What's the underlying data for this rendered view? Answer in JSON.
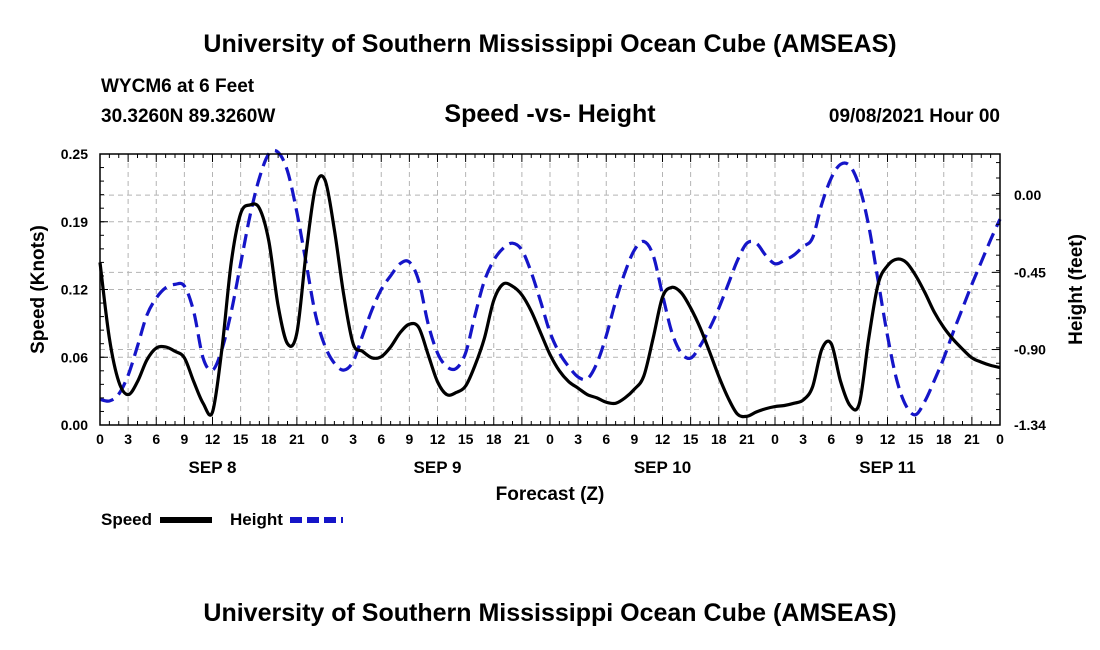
{
  "page": {
    "title_top": "University of Southern Mississippi Ocean Cube (AMSEAS)",
    "title_bottom": "University of Southern Mississippi Ocean Cube (AMSEAS)",
    "station": "WYCM6 at 6 Feet",
    "coords": "30.3260N  89.3260W",
    "subtitle": "Speed -vs- Height",
    "datetime": "09/08/2021 Hour 00"
  },
  "chart_data": {
    "type": "line",
    "title": "Speed -vs- Height",
    "xlabel": "Forecast (Z)",
    "ylabel": "Speed (Knots)",
    "y2label": "Height (feet)",
    "xlim": [
      0,
      96
    ],
    "ylim": [
      0,
      0.25
    ],
    "y2lim": [
      -1.34,
      0.24
    ],
    "y_ticks": [
      "0.00",
      "0.06",
      "0.12",
      "0.19",
      "0.25"
    ],
    "y_tick_values": [
      0,
      0.0625,
      0.125,
      0.1875,
      0.25
    ],
    "y2_ticks": [
      "-1.34",
      "-0.90",
      "-0.45",
      "0.00"
    ],
    "y2_tick_values": [
      -1.34,
      -0.9,
      -0.45,
      0.0
    ],
    "x_tick_labels": [
      "0",
      "3",
      "6",
      "9",
      "12",
      "15",
      "18",
      "21",
      "0",
      "3",
      "6",
      "9",
      "12",
      "15",
      "18",
      "21",
      "0",
      "3",
      "6",
      "9",
      "12",
      "15",
      "18",
      "21",
      "0",
      "3",
      "6",
      "9",
      "12",
      "15",
      "18",
      "21",
      "0"
    ],
    "day_labels": [
      {
        "label": "SEP 8",
        "hour": 12
      },
      {
        "label": "SEP 9",
        "hour": 36
      },
      {
        "label": "SEP 10",
        "hour": 60
      },
      {
        "label": "SEP 11",
        "hour": 84
      }
    ],
    "colors": {
      "speed": "#000000",
      "height": "#1515c8",
      "grid": "#b4b4b4"
    },
    "series": [
      {
        "name": "Speed",
        "axis": "left",
        "style": "solid",
        "points": [
          [
            0,
            0.15
          ],
          [
            1,
            0.08
          ],
          [
            2,
            0.04
          ],
          [
            3,
            0.028
          ],
          [
            4,
            0.04
          ],
          [
            5,
            0.06
          ],
          [
            6,
            0.071
          ],
          [
            7,
            0.072
          ],
          [
            8,
            0.068
          ],
          [
            9,
            0.062
          ],
          [
            10,
            0.04
          ],
          [
            11,
            0.02
          ],
          [
            12,
            0.012
          ],
          [
            13,
            0.07
          ],
          [
            14,
            0.15
          ],
          [
            15,
            0.195
          ],
          [
            16,
            0.203
          ],
          [
            17,
            0.2
          ],
          [
            18,
            0.17
          ],
          [
            19,
            0.11
          ],
          [
            20,
            0.075
          ],
          [
            21,
            0.085
          ],
          [
            22,
            0.16
          ],
          [
            23,
            0.22
          ],
          [
            24,
            0.226
          ],
          [
            25,
            0.18
          ],
          [
            26,
            0.12
          ],
          [
            27,
            0.075
          ],
          [
            28,
            0.068
          ],
          [
            29,
            0.062
          ],
          [
            30,
            0.063
          ],
          [
            31,
            0.072
          ],
          [
            32,
            0.085
          ],
          [
            33,
            0.093
          ],
          [
            34,
            0.09
          ],
          [
            35,
            0.065
          ],
          [
            36,
            0.04
          ],
          [
            37,
            0.028
          ],
          [
            38,
            0.03
          ],
          [
            39,
            0.036
          ],
          [
            40,
            0.055
          ],
          [
            41,
            0.08
          ],
          [
            42,
            0.115
          ],
          [
            43,
            0.13
          ],
          [
            44,
            0.128
          ],
          [
            45,
            0.12
          ],
          [
            46,
            0.105
          ],
          [
            47,
            0.085
          ],
          [
            48,
            0.065
          ],
          [
            49,
            0.05
          ],
          [
            50,
            0.04
          ],
          [
            51,
            0.034
          ],
          [
            52,
            0.028
          ],
          [
            53,
            0.025
          ],
          [
            54,
            0.021
          ],
          [
            55,
            0.02
          ],
          [
            56,
            0.025
          ],
          [
            57,
            0.033
          ],
          [
            58,
            0.045
          ],
          [
            59,
            0.08
          ],
          [
            60,
            0.118
          ],
          [
            61,
            0.127
          ],
          [
            62,
            0.122
          ],
          [
            63,
            0.108
          ],
          [
            64,
            0.09
          ],
          [
            65,
            0.068
          ],
          [
            66,
            0.045
          ],
          [
            67,
            0.025
          ],
          [
            68,
            0.01
          ],
          [
            69,
            0.008
          ],
          [
            70,
            0.012
          ],
          [
            71,
            0.015
          ],
          [
            72,
            0.017
          ],
          [
            73,
            0.018
          ],
          [
            74,
            0.02
          ],
          [
            75,
            0.023
          ],
          [
            76,
            0.035
          ],
          [
            77,
            0.07
          ],
          [
            78,
            0.075
          ],
          [
            79,
            0.04
          ],
          [
            80,
            0.018
          ],
          [
            81,
            0.02
          ],
          [
            82,
            0.08
          ],
          [
            83,
            0.13
          ],
          [
            84,
            0.147
          ],
          [
            85,
            0.153
          ],
          [
            86,
            0.15
          ],
          [
            87,
            0.138
          ],
          [
            88,
            0.122
          ],
          [
            89,
            0.104
          ],
          [
            90,
            0.09
          ],
          [
            91,
            0.079
          ],
          [
            92,
            0.07
          ],
          [
            93,
            0.062
          ],
          [
            94,
            0.058
          ],
          [
            95,
            0.055
          ],
          [
            96,
            0.053
          ]
        ]
      },
      {
        "name": "Height",
        "axis": "right",
        "style": "dashed",
        "points": [
          [
            0,
            -1.19
          ],
          [
            1,
            -1.2
          ],
          [
            2,
            -1.16
          ],
          [
            3,
            -1.05
          ],
          [
            4,
            -0.88
          ],
          [
            5,
            -0.7
          ],
          [
            6,
            -0.6
          ],
          [
            7,
            -0.54
          ],
          [
            8,
            -0.52
          ],
          [
            9,
            -0.53
          ],
          [
            10,
            -0.68
          ],
          [
            11,
            -0.95
          ],
          [
            12,
            -1.02
          ],
          [
            13,
            -0.9
          ],
          [
            14,
            -0.68
          ],
          [
            15,
            -0.4
          ],
          [
            16,
            -0.12
          ],
          [
            17,
            0.1
          ],
          [
            18,
            0.24
          ],
          [
            19,
            0.25
          ],
          [
            20,
            0.14
          ],
          [
            21,
            -0.1
          ],
          [
            22,
            -0.4
          ],
          [
            23,
            -0.7
          ],
          [
            24,
            -0.88
          ],
          [
            25,
            -0.98
          ],
          [
            26,
            -1.02
          ],
          [
            27,
            -0.97
          ],
          [
            28,
            -0.82
          ],
          [
            29,
            -0.67
          ],
          [
            30,
            -0.55
          ],
          [
            31,
            -0.47
          ],
          [
            32,
            -0.4
          ],
          [
            33,
            -0.39
          ],
          [
            34,
            -0.5
          ],
          [
            35,
            -0.75
          ],
          [
            36,
            -0.92
          ],
          [
            37,
            -1.0
          ],
          [
            38,
            -1.01
          ],
          [
            39,
            -0.92
          ],
          [
            40,
            -0.7
          ],
          [
            41,
            -0.5
          ],
          [
            42,
            -0.38
          ],
          [
            43,
            -0.31
          ],
          [
            44,
            -0.28
          ],
          [
            45,
            -0.32
          ],
          [
            46,
            -0.45
          ],
          [
            47,
            -0.62
          ],
          [
            48,
            -0.8
          ],
          [
            49,
            -0.92
          ],
          [
            50,
            -1.0
          ],
          [
            51,
            -1.06
          ],
          [
            52,
            -1.07
          ],
          [
            53,
            -0.98
          ],
          [
            54,
            -0.82
          ],
          [
            55,
            -0.62
          ],
          [
            56,
            -0.45
          ],
          [
            57,
            -0.32
          ],
          [
            58,
            -0.27
          ],
          [
            59,
            -0.35
          ],
          [
            60,
            -0.58
          ],
          [
            61,
            -0.8
          ],
          [
            62,
            -0.92
          ],
          [
            63,
            -0.95
          ],
          [
            64,
            -0.88
          ],
          [
            65,
            -0.78
          ],
          [
            66,
            -0.66
          ],
          [
            67,
            -0.52
          ],
          [
            68,
            -0.38
          ],
          [
            69,
            -0.28
          ],
          [
            70,
            -0.28
          ],
          [
            71,
            -0.35
          ],
          [
            72,
            -0.4
          ],
          [
            73,
            -0.38
          ],
          [
            74,
            -0.35
          ],
          [
            75,
            -0.3
          ],
          [
            76,
            -0.25
          ],
          [
            77,
            -0.05
          ],
          [
            78,
            0.1
          ],
          [
            79,
            0.18
          ],
          [
            80,
            0.17
          ],
          [
            81,
            0.05
          ],
          [
            82,
            -0.18
          ],
          [
            83,
            -0.5
          ],
          [
            84,
            -0.82
          ],
          [
            85,
            -1.08
          ],
          [
            86,
            -1.23
          ],
          [
            87,
            -1.28
          ],
          [
            88,
            -1.2
          ],
          [
            89,
            -1.08
          ],
          [
            90,
            -0.95
          ],
          [
            91,
            -0.8
          ],
          [
            92,
            -0.66
          ],
          [
            93,
            -0.52
          ],
          [
            94,
            -0.39
          ],
          [
            95,
            -0.26
          ],
          [
            96,
            -0.14
          ]
        ]
      }
    ],
    "legend": [
      {
        "label": "Speed",
        "style": "solid"
      },
      {
        "label": "Height",
        "style": "dashed"
      }
    ]
  }
}
